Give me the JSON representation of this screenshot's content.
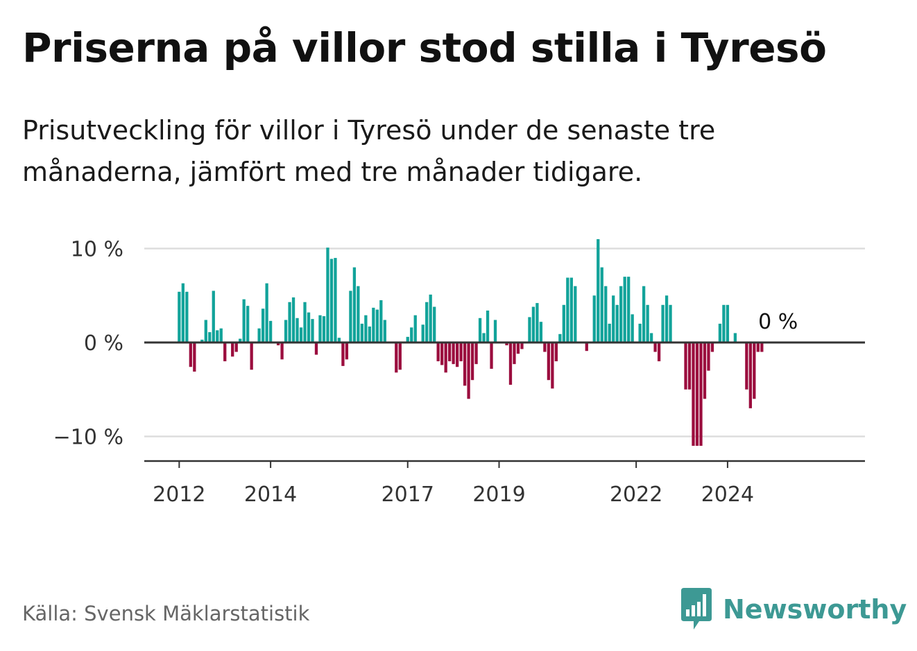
{
  "title": "Priserna på villor stod stilla i Tyresö",
  "subtitle": "Prisutveckling för villor i Tyresö under de senaste tre månaderna, jämfört med tre månader tidigare.",
  "source": "Källa: Svensk Mäklarstatistik",
  "brand": "Newsworthy",
  "colors": {
    "positive": "#12a39a",
    "negative": "#9b0d3e",
    "grid": "#dddddd",
    "axis": "#333333",
    "brand": "#3d9994"
  },
  "chart_data": {
    "type": "bar",
    "title": "Priserna på villor stod stilla i Tyresö",
    "xlabel": "",
    "ylabel": "",
    "ylim": [
      -12.5,
      10.5
    ],
    "grid": true,
    "start": "2012-01",
    "frequency": "monthly",
    "yticks": [
      {
        "value": 10,
        "label": "10 %"
      },
      {
        "value": 0,
        "label": "0 %"
      },
      {
        "value": -10,
        "label": "−10 %"
      }
    ],
    "xticks": [
      {
        "year": 2012,
        "label": "2012"
      },
      {
        "year": 2014,
        "label": "2014"
      },
      {
        "year": 2017,
        "label": "2017"
      },
      {
        "year": 2019,
        "label": "2019"
      },
      {
        "year": 2022,
        "label": "2022"
      },
      {
        "year": 2024,
        "label": "2024"
      }
    ],
    "end_label": "0 %",
    "values": [
      5.4,
      6.3,
      5.4,
      -2.6,
      -3.1,
      0,
      0.3,
      2.4,
      1.1,
      5.5,
      1.3,
      1.5,
      -2.0,
      0,
      -1.5,
      -1.0,
      0.4,
      4.6,
      3.9,
      -2.9,
      0,
      1.5,
      3.6,
      6.3,
      2.3,
      0,
      -0.3,
      -1.8,
      2.4,
      4.3,
      4.8,
      2.6,
      1.6,
      4.3,
      3.2,
      2.5,
      -1.3,
      2.9,
      2.8,
      10.1,
      8.9,
      9.0,
      0.5,
      -2.5,
      -1.8,
      5.5,
      8.0,
      6.0,
      2.0,
      2.9,
      1.7,
      3.7,
      3.5,
      4.5,
      2.4,
      0,
      0,
      -3.2,
      -2.9,
      0,
      0.6,
      1.6,
      2.9,
      0.1,
      1.9,
      4.3,
      5.1,
      3.8,
      -2.0,
      -2.4,
      -3.2,
      -2.0,
      -2.3,
      -2.6,
      -2.0,
      -4.6,
      -6.0,
      -4.0,
      -2.3,
      2.6,
      1.0,
      3.4,
      -2.8,
      2.4,
      0,
      0,
      -0.3,
      -4.5,
      -2.3,
      -1.2,
      -0.7,
      0,
      2.7,
      3.8,
      4.2,
      2.2,
      -1.0,
      -4.0,
      -4.9,
      -2.0,
      0.9,
      4.0,
      6.9,
      6.9,
      6.0,
      0,
      0,
      -0.9,
      0,
      5.0,
      11.0,
      8.0,
      6.0,
      2.0,
      5.0,
      4.0,
      6.0,
      7.0,
      7.0,
      3.0,
      0,
      2.0,
      6.0,
      4.0,
      1.0,
      -1.0,
      -2.0,
      4.0,
      5.0,
      4.0,
      0,
      0,
      0,
      -5.0,
      -5.0,
      -11.0,
      -11.0,
      -11.0,
      -6.0,
      -3.0,
      -1.0,
      0,
      2.0,
      4.0,
      4.0,
      0,
      1.0,
      0,
      0,
      -5.0,
      -7.0,
      -6.0,
      -1.0,
      -1.0,
      0
    ]
  }
}
